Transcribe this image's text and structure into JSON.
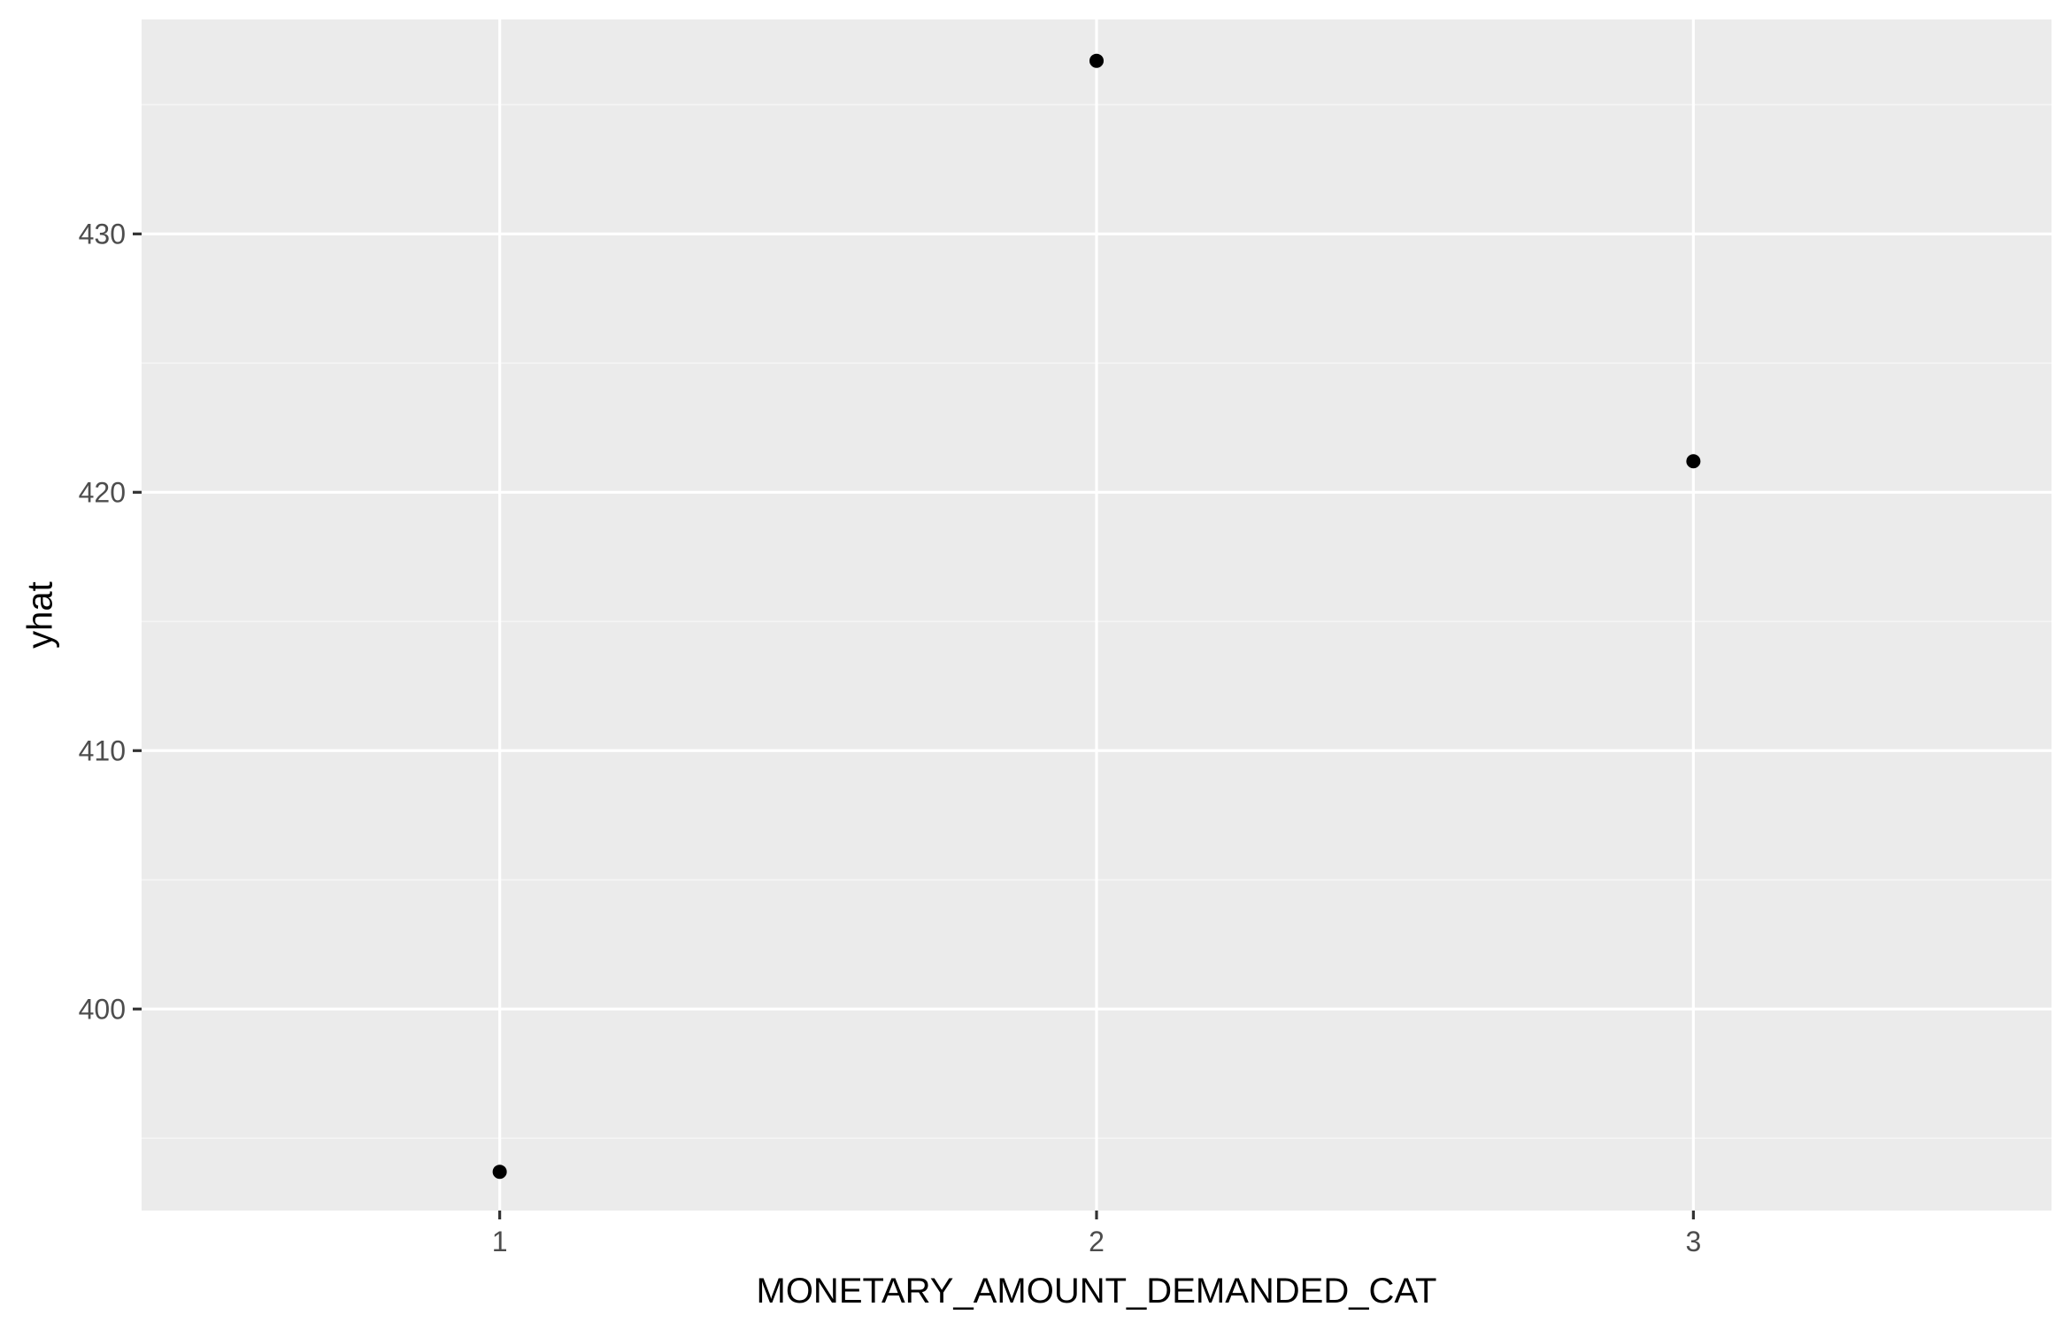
{
  "chart_data": {
    "type": "scatter",
    "title": "",
    "xlabel": "MONETARY_AMOUNT_DEMANDED_CAT",
    "ylabel": "yhat",
    "x_ticks": [
      "1",
      "2",
      "3"
    ],
    "y_ticks": [
      "400",
      "410",
      "420",
      "430"
    ],
    "xlim": [
      0.4,
      3.6
    ],
    "ylim": [
      392.2,
      438.3
    ],
    "grid": true,
    "legend": "none",
    "series": [
      {
        "x": [
          1,
          2,
          3
        ],
        "y": [
          393.7,
          436.7,
          421.2
        ]
      }
    ]
  },
  "colors": {
    "panel_background": "#ebebeb",
    "grid_major": "#ffffff",
    "grid_minor": "#f5f5f5",
    "point": "#000000",
    "tick_mark": "#333333",
    "tick_label": "#4d4d4d",
    "axis_title": "#000000"
  }
}
